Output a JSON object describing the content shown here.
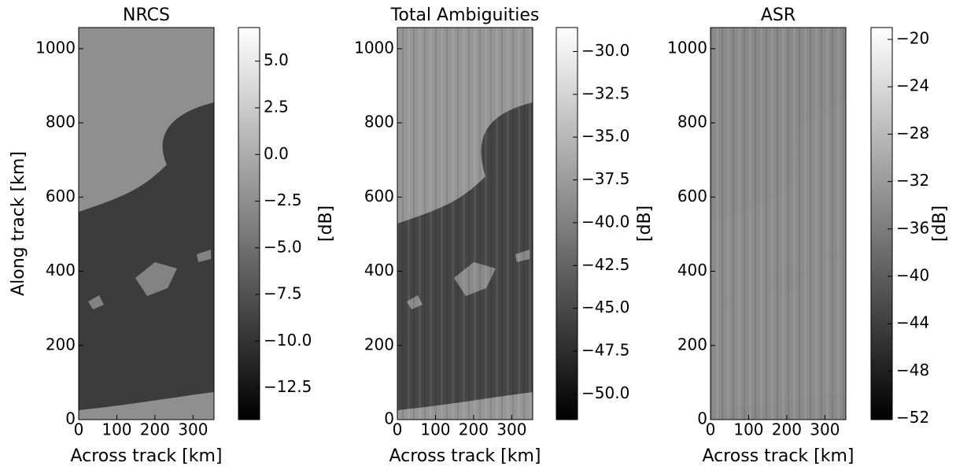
{
  "chart_data": [
    {
      "type": "image",
      "title": "NRCS",
      "xlabel": "Across track [km]",
      "ylabel": "Along track [km]",
      "xlim": [
        0,
        355
      ],
      "ylim": [
        0,
        1057
      ],
      "xticks": [
        0,
        100,
        200,
        300
      ],
      "yticks": [
        0,
        200,
        400,
        600,
        800,
        1000
      ],
      "colorbar": {
        "label": "[dB]",
        "lim": [
          -14.2,
          6.8
        ],
        "cmap": "gray",
        "ticks": [
          {
            "value": 5,
            "label": "5.0"
          },
          2.5,
          {
            "value": 0,
            "label": "0.0"
          },
          {
            "value": -2.5,
            "label": "−2.5"
          },
          {
            "value": -5,
            "label": "−5.0"
          },
          {
            "value": -7.5,
            "label": "−7.5"
          },
          {
            "value": -10,
            "label": "−10.0"
          },
          {
            "value": -12.5,
            "label": "−12.5"
          }
        ]
      }
    },
    {
      "type": "image",
      "title": "Total Ambiguities",
      "xlabel": "Across track [km]",
      "xlim": [
        0,
        355
      ],
      "ylim": [
        0,
        1057
      ],
      "xticks": [
        0,
        100,
        200,
        300
      ],
      "yticks": [
        0,
        200,
        400,
        600,
        800,
        1000
      ],
      "colorbar": {
        "label": "[dB]",
        "lim": [
          -51.5,
          -28.6
        ],
        "cmap": "gray",
        "ticks": [
          {
            "value": -30,
            "label": "−30.0"
          },
          {
            "value": -32.5,
            "label": "−32.5"
          },
          {
            "value": -35,
            "label": "−35.0"
          },
          {
            "value": -37.5,
            "label": "−37.5"
          },
          {
            "value": -40,
            "label": "−40.0"
          },
          {
            "value": -42.5,
            "label": "−42.5"
          },
          {
            "value": -45,
            "label": "−45.0"
          },
          {
            "value": -47.5,
            "label": "−47.5"
          },
          {
            "value": -50,
            "label": "−50.0"
          }
        ]
      }
    },
    {
      "type": "image",
      "title": "ASR",
      "xlabel": "Across track [km]",
      "xlim": [
        0,
        355
      ],
      "ylim": [
        0,
        1057
      ],
      "xticks": [
        0,
        100,
        200,
        300
      ],
      "yticks": [
        0,
        200,
        400,
        600,
        800,
        1000
      ],
      "colorbar": {
        "label": "[dB]",
        "lim": [
          -52.1,
          -19
        ],
        "cmap": "gray",
        "ticks": [
          {
            "value": -20,
            "label": "−20"
          },
          {
            "value": -24,
            "label": "−24"
          },
          {
            "value": -28,
            "label": "−28"
          },
          {
            "value": -32,
            "label": "−32"
          },
          {
            "value": -36,
            "label": "−36"
          },
          {
            "value": -40,
            "label": "−40"
          },
          {
            "value": -44,
            "label": "−44"
          },
          {
            "value": -48,
            "label": "−48"
          },
          {
            "value": -52,
            "label": "−52"
          }
        ]
      }
    }
  ]
}
